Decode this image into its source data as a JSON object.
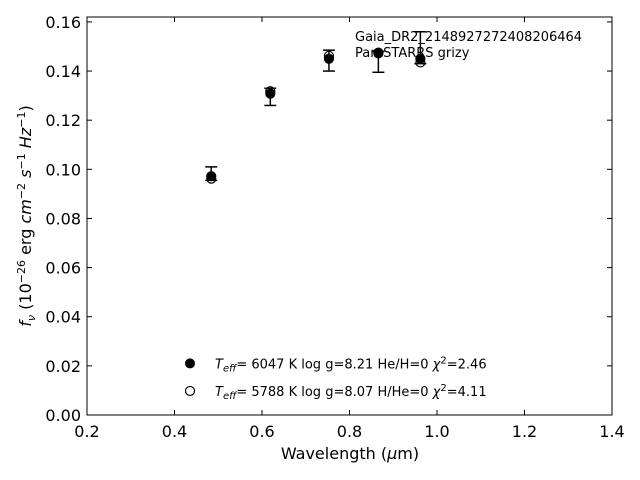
{
  "chart_data": {
    "type": "scatter",
    "xlabel": "Wavelength (μm)",
    "ylabel": "f_ν (10^-26 erg cm^-2 s^-1 Hz^-1)",
    "xlim": [
      0.2,
      1.4
    ],
    "ylim": [
      0.0,
      0.162
    ],
    "xticks": [
      "0.2",
      "0.4",
      "0.6",
      "0.8",
      "1.0",
      "1.2",
      "1.4"
    ],
    "yticks": [
      "0.00",
      "0.02",
      "0.04",
      "0.06",
      "0.08",
      "0.10",
      "0.12",
      "0.14",
      "0.16"
    ],
    "grid": false,
    "annotations": [
      "Gaia_DR2_2148927272408206464",
      "Pan-STARRS grizy"
    ],
    "observed": {
      "x": [
        0.484,
        0.619,
        0.753,
        0.866,
        0.962
      ],
      "y": [
        0.098,
        0.1295,
        0.1445,
        0.1475,
        0.1455
      ],
      "yerr_low": [
        0.0025,
        0.0035,
        0.0045,
        0.008,
        0.0025
      ],
      "yerr_high": [
        0.003,
        0.0035,
        0.004,
        0.0005,
        0.0105
      ]
    },
    "series": [
      {
        "marker": "filled-circle",
        "x": [
          0.484,
          0.619,
          0.753,
          0.866,
          0.962
        ],
        "y": [
          0.0972,
          0.1308,
          0.145,
          0.1472,
          0.145
        ],
        "label": {
          "teff": "6047",
          "logg": "8.21",
          "comp": "He/H=0",
          "chi2": "2.46"
        }
      },
      {
        "marker": "open-circle",
        "x": [
          0.484,
          0.619,
          0.753,
          0.866,
          0.962
        ],
        "y": [
          0.0962,
          0.1318,
          0.1462,
          0.1475,
          0.1435
        ],
        "label": {
          "teff": "5788",
          "logg": "8.07",
          "comp": "H/He=0",
          "chi2": "4.11"
        }
      }
    ],
    "legend_position": "bottom-center"
  }
}
